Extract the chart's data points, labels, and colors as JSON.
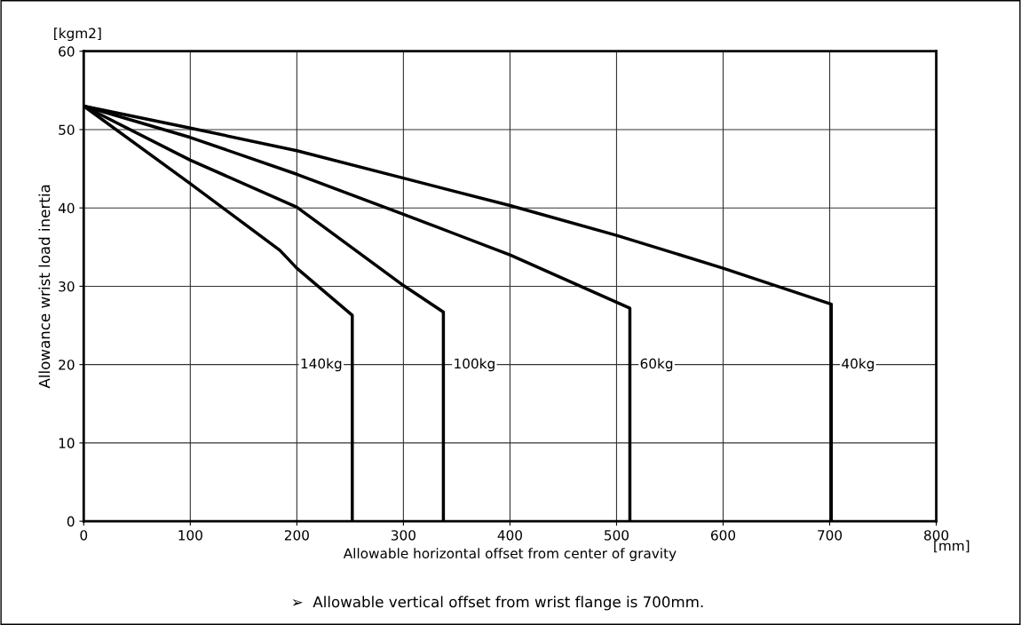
{
  "chart_data": {
    "type": "line",
    "xlabel": "Allowable horizontal offset from center of gravity",
    "ylabel": "Allowance wrist load inertia",
    "xlim": [
      0,
      800
    ],
    "xticks": [
      0,
      100,
      200,
      300,
      400,
      500,
      600,
      700,
      800
    ],
    "ylim": [
      0,
      60
    ],
    "yticks": [
      0,
      10,
      20,
      30,
      40,
      50,
      60
    ],
    "grid": true,
    "line_style": "solid",
    "series": [
      {
        "name": "140kg",
        "color": "#000000",
        "x": [
          0,
          100,
          184,
          200,
          252,
          252
        ],
        "values": [
          53,
          43.1,
          34.6,
          32.3,
          26.3,
          0
        ]
      },
      {
        "name": "100kg",
        "color": "#000000",
        "x": [
          0,
          100,
          200,
          300,
          337.5,
          337.5
        ],
        "values": [
          53,
          46.1,
          40.1,
          30.1,
          26.7,
          0
        ]
      },
      {
        "name": "60kg",
        "color": "#000000",
        "x": [
          0,
          100,
          200,
          300,
          400,
          512.5,
          512.5
        ],
        "values": [
          53,
          49,
          44.3,
          39.2,
          34,
          27.2,
          0
        ]
      },
      {
        "name": "40kg",
        "color": "#000000",
        "x": [
          0,
          100,
          200,
          300,
          400,
          500,
          600,
          701.5,
          701.5
        ],
        "values": [
          53,
          50.2,
          47.3,
          43.8,
          40.3,
          36.5,
          32.3,
          27.7,
          0
        ]
      }
    ],
    "annotations": [
      "[kgm2]",
      "[mm]",
      "➢  Allowable vertical offset from wrist flange is 700mm."
    ]
  }
}
